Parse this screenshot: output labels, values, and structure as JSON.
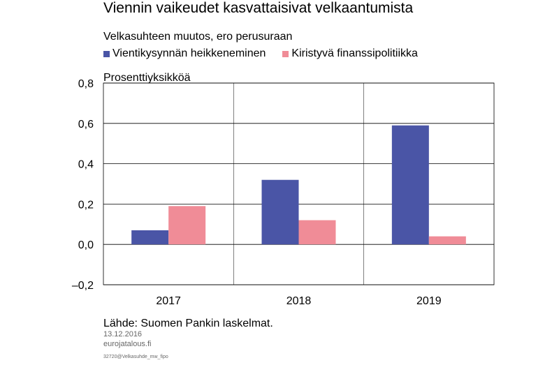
{
  "chart_data": {
    "type": "bar",
    "title": "Viennin vaikeudet kasvattaisivat velkaantumista",
    "subtitle": "Velkasuhteen muutos, ero perusuraan",
    "ylabel": "Prosenttiyksikköä",
    "categories": [
      "2017",
      "2018",
      "2019"
    ],
    "series": [
      {
        "name": "Vientikysynnän heikkeneminen",
        "values": [
          0.07,
          0.32,
          0.59
        ],
        "color": "#4a55a6"
      },
      {
        "name": "Kiristyvä finanssipolitiikka",
        "values": [
          0.19,
          0.12,
          0.04
        ],
        "color": "#f08c97"
      }
    ],
    "ylim": [
      -0.2,
      0.8
    ],
    "yticks": [
      -0.2,
      0.0,
      0.2,
      0.4,
      0.6,
      0.8
    ],
    "ytick_labels": [
      "–0,2",
      "0,0",
      "0,2",
      "0,4",
      "0,6",
      "0,8"
    ],
    "grid": true,
    "legend_position": "top-left"
  },
  "footer": {
    "source": "Lähde: Suomen Pankin laskelmat.",
    "date": "13.12.2016",
    "site": "eurojatalous.fi",
    "code": "32720@Velkasuhde_mw_fipo"
  }
}
